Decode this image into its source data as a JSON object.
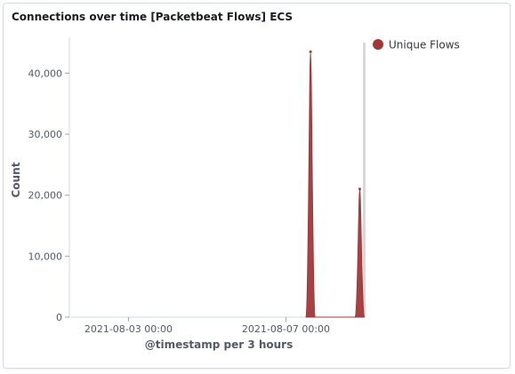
{
  "panel": {
    "title": "Connections over time [Packetbeat Flows] ECS"
  },
  "chart_data": {
    "type": "area",
    "xlabel": "@timestamp per 3 hours",
    "ylabel": "Count",
    "ylim": [
      0,
      45000
    ],
    "yticks": [
      0,
      10000,
      20000,
      30000,
      40000
    ],
    "ytick_labels": [
      "0",
      "10,000",
      "20,000",
      "30,000",
      "40,000"
    ],
    "xticks": [
      "2021-08-03 00:00",
      "2021-08-07 00:00"
    ],
    "xlim": [
      "2021-08-01 12:00",
      "2021-08-09 00:00"
    ],
    "legend_position": "top-right",
    "grid": false,
    "series": [
      {
        "name": "Unique Flows",
        "color": "#a0383a",
        "points": [
          {
            "x": "2021-08-07 12:00",
            "y": 0
          },
          {
            "x": "2021-08-07 15:00",
            "y": 43500
          },
          {
            "x": "2021-08-07 18:00",
            "y": 0
          },
          {
            "x": "2021-08-08 18:00",
            "y": 0
          },
          {
            "x": "2021-08-08 21:00",
            "y": 21000
          },
          {
            "x": "2021-08-09 00:00",
            "y": 0
          }
        ]
      }
    ]
  }
}
